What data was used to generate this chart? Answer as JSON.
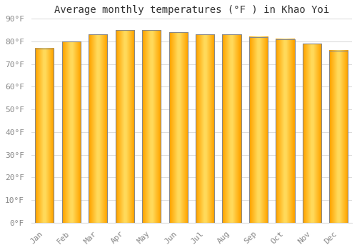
{
  "title": "Average monthly temperatures (°F ) in Khao Yoi",
  "months": [
    "Jan",
    "Feb",
    "Mar",
    "Apr",
    "May",
    "Jun",
    "Jul",
    "Aug",
    "Sep",
    "Oct",
    "Nov",
    "Dec"
  ],
  "values": [
    77,
    80,
    83,
    85,
    85,
    84,
    83,
    83,
    82,
    81,
    79,
    76
  ],
  "bar_color_center": "#FFD966",
  "bar_color_edge": "#FFA500",
  "bar_border_color": "#888888",
  "background_color": "#FFFFFF",
  "plot_bg_color": "#FFFFFF",
  "grid_color": "#DDDDDD",
  "ytick_labels": [
    "0°F",
    "10°F",
    "20°F",
    "30°F",
    "40°F",
    "50°F",
    "60°F",
    "70°F",
    "80°F",
    "90°F"
  ],
  "ytick_values": [
    0,
    10,
    20,
    30,
    40,
    50,
    60,
    70,
    80,
    90
  ],
  "ylim": [
    0,
    90
  ],
  "title_fontsize": 10,
  "tick_fontsize": 8,
  "tick_color": "#888888",
  "title_color": "#333333",
  "bar_width": 0.7,
  "figsize": [
    5.0,
    3.5
  ],
  "dpi": 100
}
